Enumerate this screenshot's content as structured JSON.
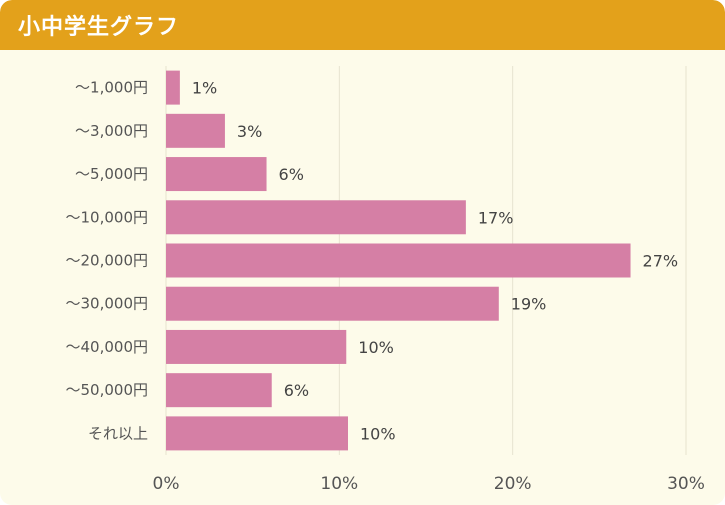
{
  "header": {
    "title": "小中学生グラフ"
  },
  "colors": {
    "header_bg": "#e3a11b",
    "panel_bg": "#fdfbea",
    "bar": "#d57fa5",
    "grid": "#e6e3cf"
  },
  "chart_data": {
    "type": "bar",
    "orientation": "horizontal",
    "title": "小中学生グラフ",
    "categories": [
      "～1,000円",
      "～3,000円",
      "～5,000円",
      "～10,000円",
      "～20,000円",
      "～30,000円",
      "～40,000円",
      "～50,000円",
      "それ以上"
    ],
    "values": [
      1,
      3,
      6,
      17,
      27,
      19,
      10,
      6,
      10
    ],
    "value_labels": [
      "1%",
      "3%",
      "6%",
      "17%",
      "27%",
      "19%",
      "10%",
      "6%",
      "10%"
    ],
    "precise_values": [
      0.8,
      3.4,
      5.8,
      17.3,
      26.8,
      19.2,
      10.4,
      6.1,
      10.5
    ],
    "xlim": [
      0,
      30
    ],
    "x_ticks": [
      0,
      10,
      20,
      30
    ],
    "x_tick_labels": [
      "0%",
      "10%",
      "20%",
      "30%"
    ],
    "grid": true,
    "legend": "none"
  }
}
